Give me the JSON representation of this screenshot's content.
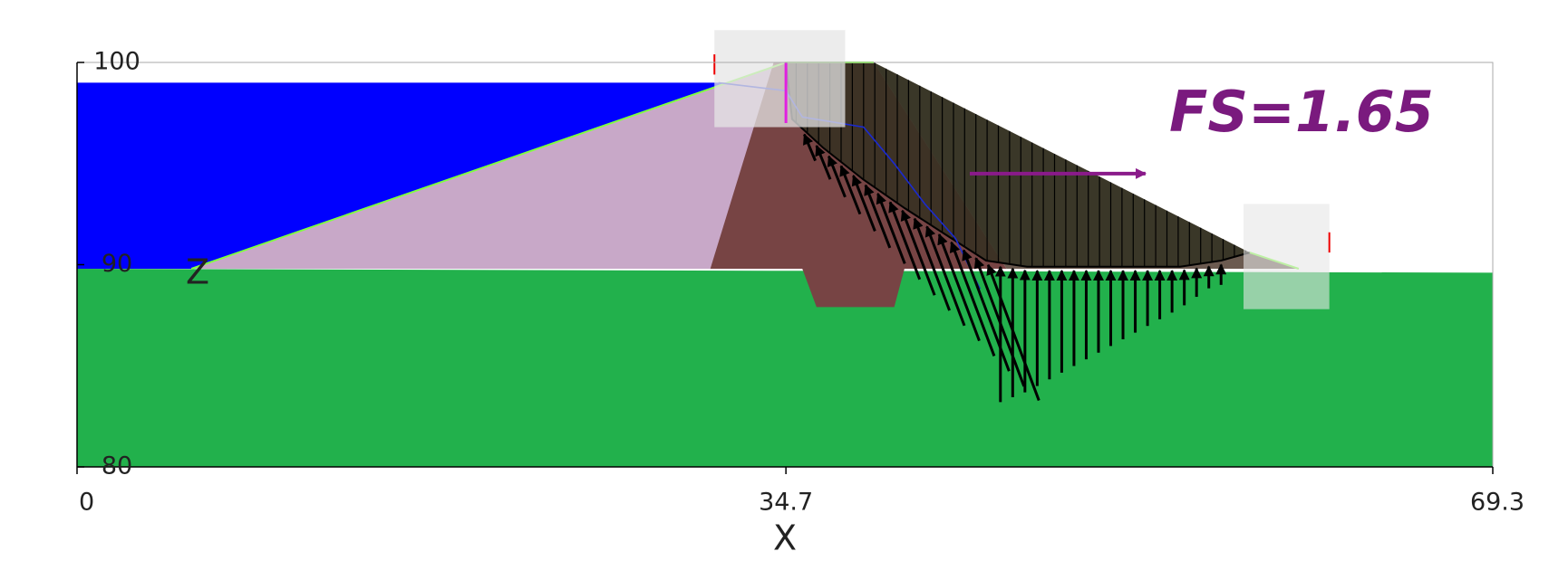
{
  "chart_data": {
    "type": "slope-stability",
    "annotation": "FS=1.65",
    "xlabel": "X",
    "ylabel": "Z",
    "xlim": [
      0,
      69.3
    ],
    "ylim": [
      80,
      100
    ],
    "xticks": [
      0,
      34.7,
      69.3
    ],
    "yticks": [
      80,
      90,
      100
    ]
  }
}
